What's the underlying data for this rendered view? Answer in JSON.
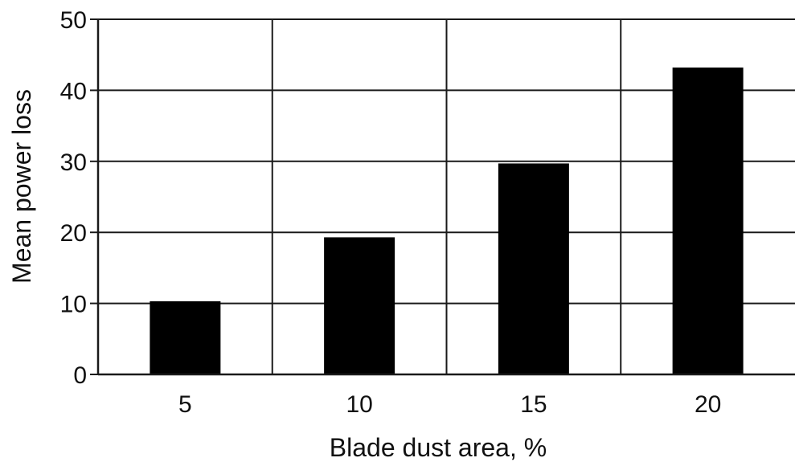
{
  "chart_data": {
    "type": "bar",
    "categories": [
      "5",
      "10",
      "15",
      "20"
    ],
    "values": [
      10.3,
      19.3,
      29.7,
      43.2
    ],
    "xlabel": "Blade dust area, %",
    "ylabel": "Mean power loss",
    "ylim": [
      0,
      50
    ],
    "yticks": [
      "0",
      "10",
      "20",
      "30",
      "40",
      "50"
    ],
    "grid": true,
    "bar_color": "#000000",
    "grid_color": "#1a1a1a"
  }
}
